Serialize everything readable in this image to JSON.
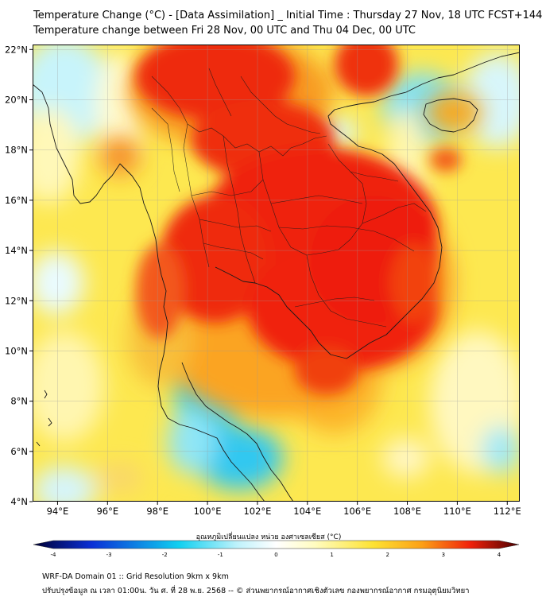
{
  "header": {
    "title_line1": "Temperature Change (°C) - [Data Assimilation] _ Initial Time : Thursday 27 Nov, 18 UTC FCST+144",
    "title_line2": "Temperature change between Fri 28 Nov, 00 UTC and Thu 04 Dec, 00 UTC"
  },
  "map": {
    "lon_labels": [
      "94°E",
      "96°E",
      "98°E",
      "100°E",
      "102°E",
      "104°E",
      "106°E",
      "108°E",
      "110°E",
      "112°E"
    ],
    "lat_labels": [
      "4°N",
      "6°N",
      "8°N",
      "10°N",
      "12°N",
      "14°N",
      "16°N",
      "18°N",
      "20°N",
      "22°N"
    ],
    "lon_range": [
      93,
      112.5
    ],
    "lat_range": [
      4,
      22.2
    ]
  },
  "colorbar": {
    "title": "อุณหภูมิเปลี่ยนแปลง หน่วย องศาเซลเซียส (°C)",
    "tick_labels": [
      "-4",
      "-3",
      "-2",
      "-1",
      "0",
      "1",
      "2",
      "3",
      "4"
    ],
    "range": [
      -4,
      4
    ],
    "colors": {
      "min": "#000033",
      "blue": "#0a2fd6",
      "cyan": "#10d0f0",
      "light_cyan": "#bff2fb",
      "white": "#ffffff",
      "light_yellow": "#fffcc0",
      "yellow": "#fde233",
      "orange": "#fca016",
      "red": "#f0210b",
      "max": "#4b0000"
    }
  },
  "footer": {
    "line1": "WRF-DA Domain 01 :: Grid Resolution 9km x 9km",
    "line2": "ปรับปรุงข้อมูล ณ เวลา 01:00น. วัน ศ. ที่ 28 พ.ย. 2568 -- © ส่วนพยากรณ์อากาศเชิงตัวเลข กองพยากรณ์อากาศ กรมอุตุนิยมวิทยา"
  }
}
